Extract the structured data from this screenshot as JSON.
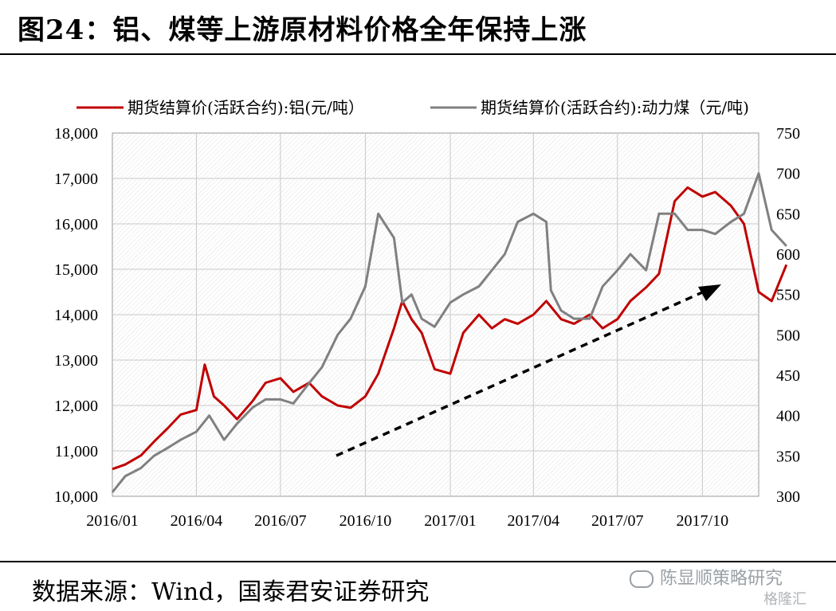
{
  "page": {
    "title": "图24：铝、煤等上游原材料价格全年保持上涨",
    "source": "数据来源：Wind，国泰君安证券研究",
    "watermark": "陈显顺策略研究",
    "watermark2": "格隆汇"
  },
  "chart_data": {
    "type": "line",
    "title": "",
    "xlabel": "",
    "ylabel": "",
    "x_ticks": [
      "2016/01",
      "2016/04",
      "2016/07",
      "2016/10",
      "2017/01",
      "2017/04",
      "2017/07",
      "2017/10"
    ],
    "x_range": [
      "2016-01",
      "2017-12"
    ],
    "y_left": {
      "range": [
        10000,
        18000
      ],
      "ticks": [
        "10,000",
        "11,000",
        "12,000",
        "13,000",
        "14,000",
        "15,000",
        "16,000",
        "17,000",
        "18,000"
      ]
    },
    "y_right": {
      "range": [
        300,
        750
      ],
      "ticks": [
        "300",
        "350",
        "400",
        "450",
        "500",
        "550",
        "600",
        "650",
        "700",
        "750"
      ]
    },
    "grid": true,
    "legend_position": "top",
    "annotation": "dashed upward arrow",
    "series": [
      {
        "name": "期货结算价(活跃合约):铝(元/吨）",
        "axis": "left",
        "color": "#c00000",
        "x": [
          "2016-01",
          "2016-01-15",
          "2016-02",
          "2016-02-15",
          "2016-03",
          "2016-03-15",
          "2016-04",
          "2016-04-10",
          "2016-04-20",
          "2016-05",
          "2016-05-15",
          "2016-06",
          "2016-06-15",
          "2016-07",
          "2016-07-15",
          "2016-08",
          "2016-08-15",
          "2016-09",
          "2016-09-15",
          "2016-10",
          "2016-10-15",
          "2016-11",
          "2016-11-10",
          "2016-11-20",
          "2016-12",
          "2016-12-15",
          "2017-01",
          "2017-01-15",
          "2017-02",
          "2017-02-15",
          "2017-03",
          "2017-03-15",
          "2017-04",
          "2017-04-15",
          "2017-05",
          "2017-05-15",
          "2017-06",
          "2017-06-15",
          "2017-07",
          "2017-07-15",
          "2017-08",
          "2017-08-15",
          "2017-09",
          "2017-09-15",
          "2017-10",
          "2017-10-15",
          "2017-11",
          "2017-11-15",
          "2017-12",
          "2017-12-15",
          "2017-12-31"
        ],
        "values": [
          10600,
          10700,
          10900,
          11200,
          11500,
          11800,
          11900,
          12900,
          12200,
          12000,
          11700,
          12100,
          12500,
          12600,
          12300,
          12500,
          12200,
          12000,
          11950,
          12200,
          12700,
          13700,
          14300,
          13900,
          13600,
          12800,
          12700,
          13600,
          14000,
          13700,
          13900,
          13800,
          14000,
          14300,
          13900,
          13800,
          14000,
          13700,
          13900,
          14300,
          14600,
          14900,
          16500,
          16800,
          16600,
          16700,
          16400,
          16000,
          14500,
          14300,
          15100
        ]
      },
      {
        "name": "期货结算价(活跃合约):动力煤（元/吨)",
        "axis": "right",
        "color": "#808080",
        "x": [
          "2016-01",
          "2016-01-15",
          "2016-02",
          "2016-02-15",
          "2016-03",
          "2016-03-15",
          "2016-04",
          "2016-04-15",
          "2016-05",
          "2016-05-15",
          "2016-06",
          "2016-06-15",
          "2016-07",
          "2016-07-15",
          "2016-08",
          "2016-08-15",
          "2016-09",
          "2016-09-15",
          "2016-10",
          "2016-10-15",
          "2016-11",
          "2016-11-10",
          "2016-11-20",
          "2016-12",
          "2016-12-15",
          "2017-01",
          "2017-01-15",
          "2017-02",
          "2017-02-15",
          "2017-03",
          "2017-03-15",
          "2017-04",
          "2017-04-15",
          "2017-04-20",
          "2017-05",
          "2017-05-15",
          "2017-06",
          "2017-06-15",
          "2017-07",
          "2017-07-15",
          "2017-08",
          "2017-08-15",
          "2017-09",
          "2017-09-15",
          "2017-10",
          "2017-10-15",
          "2017-11",
          "2017-11-15",
          "2017-12",
          "2017-12-15",
          "2017-12-31"
        ],
        "values": [
          305,
          325,
          335,
          350,
          360,
          370,
          380,
          400,
          370,
          390,
          410,
          420,
          420,
          415,
          440,
          460,
          500,
          520,
          560,
          650,
          620,
          540,
          550,
          520,
          510,
          540,
          550,
          560,
          580,
          600,
          640,
          650,
          640,
          555,
          530,
          520,
          520,
          560,
          580,
          600,
          580,
          650,
          650,
          630,
          630,
          625,
          640,
          650,
          700,
          630,
          610
        ]
      }
    ]
  }
}
